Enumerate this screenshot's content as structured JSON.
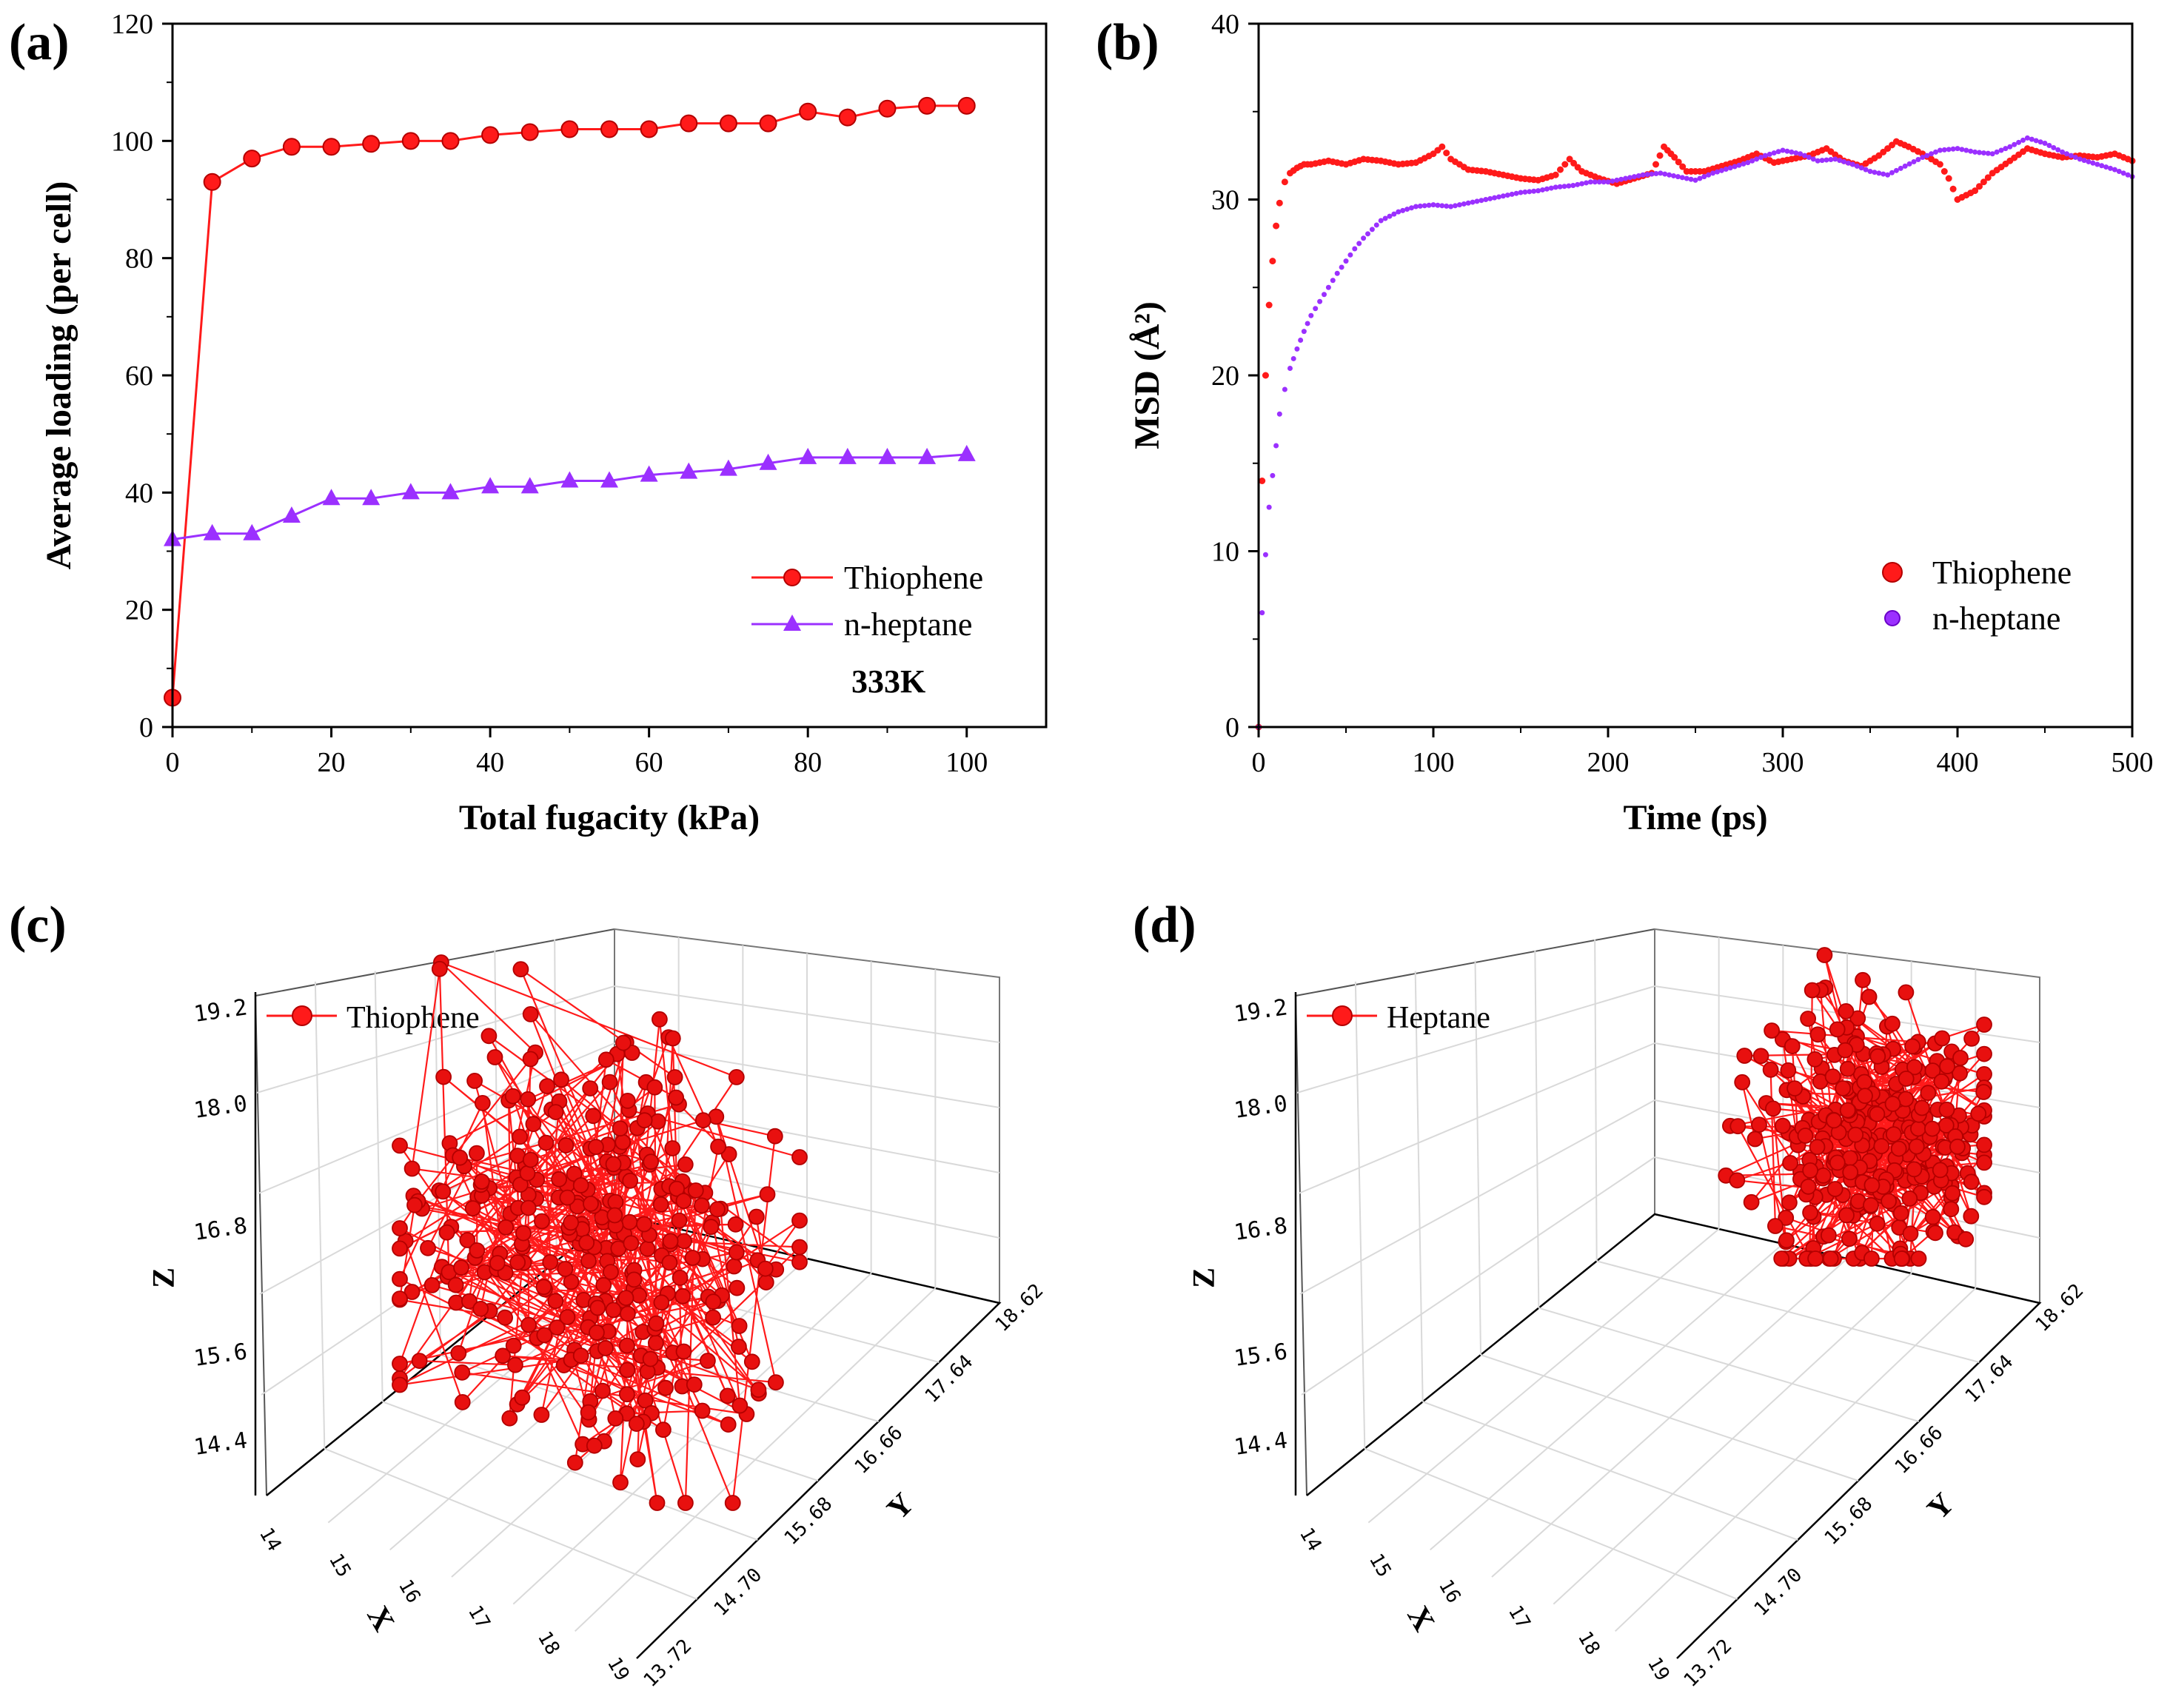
{
  "figure": {
    "panel_labels": [
      "(a)",
      "(b)",
      "(c)",
      "(d)"
    ]
  },
  "colors": {
    "thiophene": "#ff1a1a",
    "thiophene_dark": "#b30000",
    "heptane": "#9b30ff",
    "axis": "#000000",
    "grid": "#d9d9d9"
  },
  "chart_data": [
    {
      "panel": "(a)",
      "type": "line",
      "xlabel": "Total fugacity (kPa)",
      "ylabel": "Average loading (per cell)",
      "xlim": [
        0,
        110
      ],
      "ylim": [
        0,
        120
      ],
      "xticks": [
        0,
        20,
        40,
        60,
        80,
        100
      ],
      "yticks": [
        0,
        20,
        40,
        60,
        80,
        100,
        120
      ],
      "xticklabels": [
        "0",
        "20",
        "40",
        "60",
        "80",
        "100"
      ],
      "yticklabels": [
        "0",
        "20",
        "40",
        "60",
        "80",
        "100",
        "120"
      ],
      "annotation": "333K",
      "legend_position": "lower-right",
      "series": [
        {
          "name": "Thiophene",
          "marker": "circle",
          "x": [
            0,
            5,
            10,
            15,
            20,
            25,
            30,
            35,
            40,
            45,
            50,
            55,
            60,
            65,
            70,
            75,
            80,
            85,
            90,
            95,
            100
          ],
          "y": [
            5,
            93,
            97,
            99,
            99,
            99.5,
            100,
            100,
            101,
            101.5,
            102,
            102,
            102,
            103,
            103,
            103,
            105,
            104,
            105.5,
            106,
            106
          ]
        },
        {
          "name": "n-heptane",
          "marker": "triangle",
          "x": [
            0,
            5,
            10,
            15,
            20,
            25,
            30,
            35,
            40,
            45,
            50,
            55,
            60,
            65,
            70,
            75,
            80,
            85,
            90,
            95,
            100
          ],
          "y": [
            32,
            33,
            33,
            36,
            39,
            39,
            40,
            40,
            41,
            41,
            42,
            42,
            43,
            43.5,
            44,
            45,
            46,
            46,
            46,
            46,
            46.5
          ]
        }
      ]
    },
    {
      "panel": "(b)",
      "type": "scatter",
      "xlabel": "Time (ps)",
      "ylabel": "MSD (Å²)",
      "xlim": [
        0,
        500
      ],
      "ylim": [
        0,
        40
      ],
      "xticks": [
        0,
        100,
        200,
        300,
        400,
        500
      ],
      "yticks": [
        0,
        10,
        20,
        30,
        40
      ],
      "xticklabels": [
        "0",
        "100",
        "200",
        "300",
        "400",
        "500"
      ],
      "yticklabels": [
        "0",
        "10",
        "20",
        "30",
        "40"
      ],
      "legend_position": "lower-right",
      "series": [
        {
          "name": "Thiophene",
          "x": [
            0,
            2,
            4,
            6,
            8,
            10,
            12,
            15,
            18,
            22,
            26,
            30,
            40,
            50,
            60,
            70,
            80,
            90,
            100,
            105,
            110,
            120,
            130,
            140,
            150,
            160,
            170,
            178,
            185,
            195,
            205,
            215,
            225,
            232,
            238,
            245,
            255,
            265,
            275,
            285,
            295,
            305,
            315,
            325,
            335,
            345,
            355,
            365,
            372,
            380,
            390,
            395,
            400,
            410,
            420,
            430,
            440,
            450,
            460,
            470,
            480,
            490,
            500
          ],
          "y": [
            0,
            14,
            20,
            24,
            26.5,
            28.5,
            29.8,
            31,
            31.5,
            31.8,
            32,
            32,
            32.2,
            32,
            32.3,
            32.2,
            32,
            32.1,
            32.6,
            33,
            32.3,
            31.7,
            31.6,
            31.4,
            31.2,
            31.1,
            31.4,
            32.3,
            31.6,
            31.2,
            30.9,
            31.2,
            31.5,
            33,
            32.4,
            31.6,
            31.6,
            31.9,
            32.2,
            32.6,
            32.1,
            32.3,
            32.5,
            32.9,
            32.2,
            31.9,
            32.5,
            33.3,
            33,
            32.6,
            32,
            31.2,
            30,
            30.5,
            31.5,
            32.2,
            32.9,
            32.6,
            32.4,
            32.5,
            32.4,
            32.6,
            32.2
          ]
        },
        {
          "name": "n-heptane",
          "x": [
            0,
            2,
            4,
            6,
            8,
            10,
            12,
            15,
            18,
            22,
            26,
            30,
            35,
            40,
            45,
            50,
            55,
            60,
            65,
            70,
            80,
            90,
            100,
            110,
            120,
            130,
            140,
            150,
            160,
            170,
            180,
            190,
            200,
            210,
            220,
            230,
            240,
            250,
            260,
            270,
            280,
            290,
            300,
            310,
            320,
            330,
            340,
            350,
            360,
            370,
            380,
            390,
            400,
            410,
            420,
            430,
            440,
            450,
            460,
            470,
            480,
            490,
            500
          ],
          "y": [
            0,
            6.5,
            9.8,
            12.5,
            14.3,
            16,
            17.8,
            19.2,
            20.4,
            21.5,
            22.5,
            23.4,
            24.2,
            25,
            25.8,
            26.5,
            27.2,
            27.8,
            28.3,
            28.8,
            29.3,
            29.6,
            29.7,
            29.6,
            29.8,
            30,
            30.2,
            30.4,
            30.5,
            30.7,
            30.8,
            31,
            31,
            31.2,
            31.4,
            31.5,
            31.3,
            31.1,
            31.5,
            31.8,
            32.1,
            32.5,
            32.8,
            32.6,
            32.2,
            32.3,
            32,
            31.6,
            31.4,
            31.9,
            32.4,
            32.8,
            32.9,
            32.7,
            32.6,
            33,
            33.5,
            33.2,
            32.7,
            32.3,
            32,
            31.7,
            31.3
          ]
        }
      ]
    },
    {
      "panel": "(c)",
      "type": "scatter3d",
      "legend": "Thiophene",
      "zlabel": "Z",
      "xlabel": "X",
      "ylabel": "Y",
      "zticklabels": [
        "14.4",
        "15.6",
        "16.8",
        "18.0",
        "19.2"
      ],
      "xticklabels": [
        "14",
        "15",
        "16",
        "17",
        "18",
        "19"
      ],
      "yticklabels": [
        "13.72",
        "14.70",
        "15.68",
        "16.66",
        "17.64",
        "18.62"
      ],
      "cluster": "diffuse, centered",
      "points": 320
    },
    {
      "panel": "(d)",
      "type": "scatter3d",
      "legend": "Heptane",
      "zlabel": "Z",
      "xlabel": "X",
      "ylabel": "Y",
      "zticklabels": [
        "14.4",
        "15.6",
        "16.8",
        "18.0",
        "19.2"
      ],
      "xticklabels": [
        "14",
        "15",
        "16",
        "17",
        "18",
        "19"
      ],
      "yticklabels": [
        "13.72",
        "14.70",
        "15.68",
        "16.66",
        "17.64",
        "18.62"
      ],
      "cluster": "compact, upper-right",
      "points": 320
    }
  ]
}
